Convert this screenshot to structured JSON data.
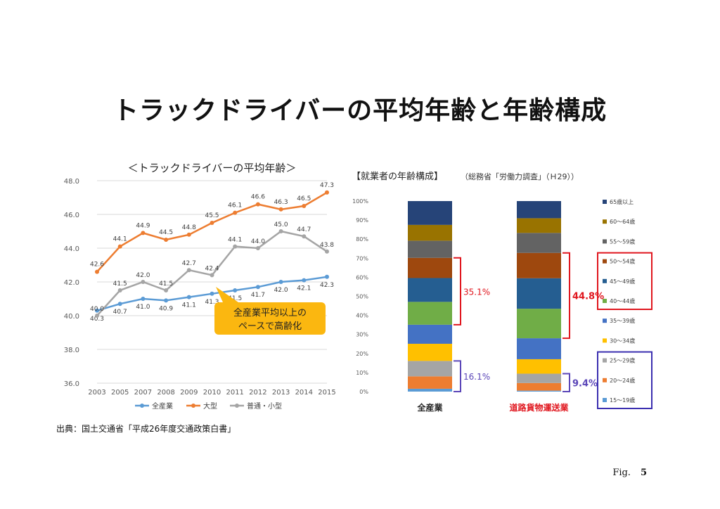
{
  "page": {
    "title": "トラックドライバーの平均年齢と年齢構成",
    "fig_prefix": "Fig.",
    "fig_number": "5"
  },
  "chart_data": [
    {
      "type": "line",
      "title": "＜トラックドライバーの平均年齢＞",
      "categories": [
        "2003",
        "2005",
        "2007",
        "2008",
        "2009",
        "2010",
        "2011",
        "2012",
        "2013",
        "2014",
        "2015"
      ],
      "ylim": [
        36.0,
        48.0
      ],
      "yticks": [
        "36.0",
        "38.0",
        "40.0",
        "42.0",
        "44.0",
        "46.0",
        "48.0"
      ],
      "grid": true,
      "legend_position": "bottom",
      "series": [
        {
          "name": "全産業",
          "color": "#5b9bd5",
          "values": [
            40.3,
            40.7,
            41.0,
            40.9,
            41.1,
            41.3,
            41.5,
            41.7,
            42.0,
            42.1,
            42.3
          ]
        },
        {
          "name": "大型",
          "color": "#ed7d31",
          "values": [
            42.6,
            44.1,
            44.9,
            44.5,
            44.8,
            45.5,
            46.1,
            46.6,
            46.3,
            46.5,
            47.3
          ]
        },
        {
          "name": "普通・小型",
          "color": "#a5a5a5",
          "values": [
            40.0,
            41.5,
            42.0,
            41.5,
            42.7,
            42.4,
            44.1,
            44.0,
            45.0,
            44.7,
            43.8
          ]
        }
      ],
      "callout": [
        "全産業平均以上の",
        "ペースで高齢化"
      ],
      "source": "出典：国土交通省「平成26年度交通政策白書」"
    },
    {
      "type": "stacked_bar",
      "title": "【就業者の年齢構成】",
      "subtitle": "（総務省「労働力調査」（Ｈ29））",
      "ylim": [
        0,
        100
      ],
      "yticks": [
        "0%",
        "10%",
        "20%",
        "30%",
        "40%",
        "50%",
        "60%",
        "70%",
        "80%",
        "90%",
        "100%"
      ],
      "legend_position": "right",
      "categories": [
        {
          "label": "全産業",
          "color": "#222222"
        },
        {
          "label": "道路貨物運送業",
          "color": "#e0161e"
        }
      ],
      "segments": [
        {
          "name": "15～19歳",
          "color": "#5b9bd5",
          "values": [
            1.5,
            0.5
          ]
        },
        {
          "name": "20～24歳",
          "color": "#ed7d31",
          "values": [
            6.5,
            4.0
          ]
        },
        {
          "name": "25～29歳",
          "color": "#a5a5a5",
          "values": [
            8.1,
            4.9
          ]
        },
        {
          "name": "30～34歳",
          "color": "#ffc000",
          "values": [
            9.0,
            7.6
          ]
        },
        {
          "name": "35～39歳",
          "color": "#4472c4",
          "values": [
            10.0,
            11.0
          ]
        },
        {
          "name": "40～44歳",
          "color": "#70ad47",
          "values": [
            12.0,
            15.5
          ]
        },
        {
          "name": "45～49歳",
          "color": "#255e91",
          "values": [
            12.5,
            16.0
          ]
        },
        {
          "name": "50～54歳",
          "color": "#9e480e",
          "values": [
            10.6,
            13.3
          ]
        },
        {
          "name": "55～59歳",
          "color": "#636363",
          "values": [
            9.0,
            10.5
          ]
        },
        {
          "name": "60～64歳",
          "color": "#997300",
          "values": [
            8.3,
            7.7
          ]
        },
        {
          "name": "65歳以上",
          "color": "#264478",
          "values": [
            12.5,
            9.0
          ]
        }
      ],
      "annotations": [
        {
          "bar": 0,
          "text": "35.1%",
          "color": "#e0161e",
          "from_segment": 5,
          "to_segment": 7
        },
        {
          "bar": 1,
          "text": "44.8%",
          "color": "#e0161e",
          "from_segment": 5,
          "to_segment": 7
        },
        {
          "bar": 0,
          "text": "16.1%",
          "color": "#5b46b8",
          "from_segment": 0,
          "to_segment": 2
        },
        {
          "bar": 1,
          "text": "9.4%",
          "color": "#5b46b8",
          "from_segment": 0,
          "to_segment": 2
        }
      ],
      "legend_boxes": [
        {
          "color": "#e0161e",
          "from_segment": 5,
          "to_segment": 7
        },
        {
          "color": "#3b2fb0",
          "from_segment": 0,
          "to_segment": 2
        }
      ]
    }
  ]
}
